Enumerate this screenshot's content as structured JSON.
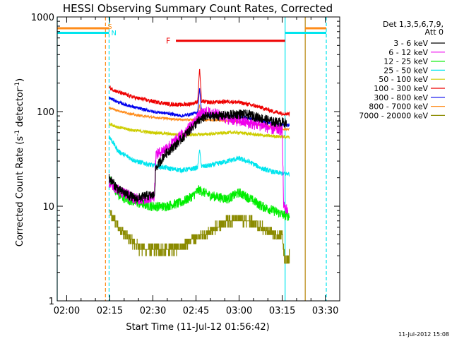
{
  "chart_data": {
    "type": "line",
    "title": "HESSI Observing Summary Count Rates, Corrected",
    "xlabel": "Start Time (11-Jul-12 01:56:42)",
    "ylabel": "Corrected Count Rate (s⁻¹ detector⁻¹)",
    "ylog": true,
    "ylim": [
      1,
      1000
    ],
    "xlim": [
      "01:56:42",
      "03:35:00"
    ],
    "x_ticks": [
      "02:00",
      "02:15",
      "02:30",
      "02:45",
      "03:00",
      "03:15",
      "03:30"
    ],
    "y_ticks": [
      "1",
      "10",
      "100",
      "1000"
    ],
    "legend_title": [
      "Det 1,3,5,6,7,9,",
      "Att 0"
    ],
    "legend_position": "right",
    "footer": "11-Jul-2012 15:08",
    "markers": [
      {
        "label": "S",
        "time": "02:13:30",
        "color": "#ff8c1a"
      },
      {
        "label": "N",
        "time": "02:14:45",
        "color": "#00e5ee"
      },
      {
        "label": "N",
        "time": "03:16:00",
        "color": "#00e5ee"
      }
    ],
    "intervals": [
      {
        "label": "F",
        "start": "02:38:00",
        "end": "03:16:00",
        "value": 560,
        "color": "#ee0000"
      },
      {
        "label": "",
        "start": "01:56:42",
        "end": "02:14:45",
        "value": 760,
        "color": "#ff8c1a"
      },
      {
        "label": "",
        "start": "03:23:00",
        "end": "03:30:20",
        "value": 760,
        "color": "#ff8c1a"
      },
      {
        "label": "",
        "start": "01:56:42",
        "end": "02:14:45",
        "value": 680,
        "color": "#00e5ee"
      },
      {
        "label": "",
        "start": "03:16:00",
        "end": "03:30:20",
        "value": 680,
        "color": "#00e5ee"
      }
    ],
    "vlines": [
      {
        "time": "01:56:42",
        "color": "#00e5ee",
        "style": "solid"
      },
      {
        "time": "02:13:30",
        "color": "#ff8c1a",
        "style": "dashed"
      },
      {
        "time": "02:14:45",
        "color": "#00e5ee",
        "style": "dashed"
      },
      {
        "time": "03:16:00",
        "color": "#00e5ee",
        "style": "solid"
      },
      {
        "time": "03:23:00",
        "color": "#b8860b",
        "style": "solid"
      },
      {
        "time": "03:30:20",
        "color": "#00e5ee",
        "style": "dashed"
      }
    ],
    "series": [
      {
        "name": "3 - 6 keV",
        "color": "#000000",
        "noise": 0.12,
        "points": [
          [
            "02:14:45",
            20
          ],
          [
            "02:18:00",
            15
          ],
          [
            "02:24:00",
            12
          ],
          [
            "02:28:00",
            13
          ],
          [
            "02:30:30",
            13
          ],
          [
            "02:31:00",
            25
          ],
          [
            "02:34:00",
            35
          ],
          [
            "02:38:00",
            45
          ],
          [
            "02:42:00",
            60
          ],
          [
            "02:44:00",
            70
          ],
          [
            "02:46:00",
            80
          ],
          [
            "02:48:00",
            88
          ],
          [
            "02:52:00",
            90
          ],
          [
            "02:56:00",
            92
          ],
          [
            "03:00:00",
            95
          ],
          [
            "03:04:00",
            92
          ],
          [
            "03:08:00",
            85
          ],
          [
            "03:12:00",
            78
          ],
          [
            "03:15:00",
            78
          ],
          [
            "03:16:30",
            75
          ]
        ]
      },
      {
        "name": "6 - 12 keV",
        "color": "#ee00ee",
        "noise": 0.14,
        "points": [
          [
            "02:14:45",
            18
          ],
          [
            "02:18:00",
            15
          ],
          [
            "02:24:00",
            12
          ],
          [
            "02:28:00",
            12
          ],
          [
            "02:30:30",
            13
          ],
          [
            "02:31:00",
            35
          ],
          [
            "02:34:00",
            40
          ],
          [
            "02:38:00",
            50
          ],
          [
            "02:42:00",
            65
          ],
          [
            "02:44:00",
            75
          ],
          [
            "02:46:00",
            90
          ],
          [
            "02:48:00",
            100
          ],
          [
            "02:52:00",
            95
          ],
          [
            "02:56:00",
            85
          ],
          [
            "03:00:00",
            80
          ],
          [
            "03:04:00",
            75
          ],
          [
            "03:08:00",
            72
          ],
          [
            "03:12:00",
            65
          ],
          [
            "03:15:00",
            65
          ],
          [
            "03:15:30",
            10
          ],
          [
            "03:17:00",
            9
          ]
        ]
      },
      {
        "name": "12 - 25 keV",
        "color": "#00ee00",
        "noise": 0.12,
        "points": [
          [
            "02:14:45",
            20
          ],
          [
            "02:18:00",
            13
          ],
          [
            "02:24:00",
            11
          ],
          [
            "02:30:00",
            10
          ],
          [
            "02:34:00",
            10
          ],
          [
            "02:40:00",
            11
          ],
          [
            "02:44:00",
            13
          ],
          [
            "02:46:00",
            15
          ],
          [
            "02:50:00",
            13
          ],
          [
            "02:56:00",
            12
          ],
          [
            "03:00:00",
            14
          ],
          [
            "03:04:00",
            12
          ],
          [
            "03:08:00",
            10
          ],
          [
            "03:12:00",
            9
          ],
          [
            "03:16:00",
            8
          ],
          [
            "03:17:30",
            8
          ]
        ]
      },
      {
        "name": "25 - 50 keV",
        "color": "#00e5ee",
        "noise": 0.06,
        "points": [
          [
            "02:14:45",
            55
          ],
          [
            "02:18:00",
            38
          ],
          [
            "02:24:00",
            30
          ],
          [
            "02:30:00",
            27
          ],
          [
            "02:36:00",
            25
          ],
          [
            "02:40:00",
            24
          ],
          [
            "02:44:00",
            25
          ],
          [
            "02:46:00",
            26
          ],
          [
            "02:50:00",
            27
          ],
          [
            "02:56:00",
            30
          ],
          [
            "03:00:00",
            32
          ],
          [
            "03:04:00",
            29
          ],
          [
            "03:08:00",
            25
          ],
          [
            "03:12:00",
            23
          ],
          [
            "03:16:00",
            22
          ],
          [
            "03:17:30",
            22
          ]
        ]
      },
      {
        "name": "50 - 100 keV",
        "color": "#cdcd00",
        "noise": 0.04,
        "points": [
          [
            "02:14:45",
            75
          ],
          [
            "02:18:00",
            68
          ],
          [
            "02:24:00",
            63
          ],
          [
            "02:30:00",
            60
          ],
          [
            "02:36:00",
            58
          ],
          [
            "02:40:00",
            57
          ],
          [
            "02:44:00",
            57
          ],
          [
            "02:50:00",
            58
          ],
          [
            "02:56:00",
            60
          ],
          [
            "03:00:00",
            60
          ],
          [
            "03:04:00",
            58
          ],
          [
            "03:08:00",
            56
          ],
          [
            "03:12:00",
            55
          ],
          [
            "03:16:00",
            54
          ],
          [
            "03:17:30",
            54
          ]
        ]
      },
      {
        "name": "100 - 300 keV",
        "color": "#ee0000",
        "noise": 0.05,
        "points": [
          [
            "02:14:45",
            180
          ],
          [
            "02:18:00",
            160
          ],
          [
            "02:24:00",
            140
          ],
          [
            "02:30:00",
            128
          ],
          [
            "02:36:00",
            120
          ],
          [
            "02:40:00",
            118
          ],
          [
            "02:44:00",
            122
          ],
          [
            "02:46:00",
            130
          ],
          [
            "02:50:00",
            125
          ],
          [
            "02:56:00",
            128
          ],
          [
            "03:00:00",
            125
          ],
          [
            "03:04:00",
            118
          ],
          [
            "03:08:00",
            110
          ],
          [
            "03:12:00",
            100
          ],
          [
            "03:16:00",
            95
          ],
          [
            "03:17:30",
            95
          ]
        ]
      },
      {
        "name": "300 - 800 keV",
        "color": "#0000ee",
        "noise": 0.04,
        "points": [
          [
            "02:14:45",
            140
          ],
          [
            "02:18:00",
            125
          ],
          [
            "02:24:00",
            110
          ],
          [
            "02:30:00",
            100
          ],
          [
            "02:36:00",
            95
          ],
          [
            "02:40:00",
            90
          ],
          [
            "02:44:00",
            95
          ],
          [
            "02:46:00",
            100
          ],
          [
            "02:50:00",
            92
          ],
          [
            "02:56:00",
            90
          ],
          [
            "03:00:00",
            88
          ],
          [
            "03:04:00",
            85
          ],
          [
            "03:08:00",
            80
          ],
          [
            "03:12:00",
            75
          ],
          [
            "03:16:00",
            72
          ],
          [
            "03:17:30",
            72
          ]
        ]
      },
      {
        "name": "800 - 7000 keV",
        "color": "#ff8c1a",
        "noise": 0.03,
        "points": [
          [
            "02:14:45",
            110
          ],
          [
            "02:18:00",
            102
          ],
          [
            "02:24:00",
            92
          ],
          [
            "02:30:00",
            87
          ],
          [
            "02:36:00",
            84
          ],
          [
            "02:40:00",
            82
          ],
          [
            "02:44:00",
            82
          ],
          [
            "02:50:00",
            82
          ],
          [
            "02:56:00",
            80
          ],
          [
            "03:00:00",
            78
          ],
          [
            "03:04:00",
            75
          ],
          [
            "03:08:00",
            72
          ],
          [
            "03:12:00",
            68
          ],
          [
            "03:16:00",
            65
          ],
          [
            "03:17:30",
            65
          ]
        ]
      },
      {
        "name": "7000 - 20000 keV",
        "color": "#8b8b00",
        "noise": 0.12,
        "steps": true,
        "points": [
          [
            "02:14:45",
            9
          ],
          [
            "02:18:00",
            6
          ],
          [
            "02:22:00",
            4.5
          ],
          [
            "02:26:00",
            3.5
          ],
          [
            "02:30:00",
            3.5
          ],
          [
            "02:36:00",
            3.5
          ],
          [
            "02:40:00",
            3.8
          ],
          [
            "02:44:00",
            4.5
          ],
          [
            "02:48:00",
            5
          ],
          [
            "02:52:00",
            6
          ],
          [
            "02:56:00",
            7
          ],
          [
            "03:00:00",
            7.5
          ],
          [
            "03:04:00",
            7
          ],
          [
            "03:08:00",
            6
          ],
          [
            "03:12:00",
            5
          ],
          [
            "03:15:00",
            5
          ],
          [
            "03:16:00",
            2.5
          ],
          [
            "03:17:30",
            3
          ]
        ]
      }
    ],
    "peak": {
      "time": "02:46:15",
      "series_values": {
        "100 - 300 keV": 290,
        "300 - 800 keV": 180,
        "800 - 7000 keV": 120,
        "25 - 50 keV": 40
      }
    }
  }
}
